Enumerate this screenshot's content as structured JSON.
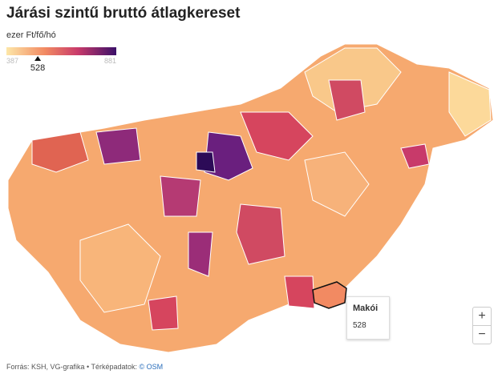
{
  "header": {
    "title": "Járási szintű bruttó átlagkereset"
  },
  "legend": {
    "unit": "ezer Ft/fő/hó",
    "min": 387,
    "max": 881,
    "marker": 528
  },
  "tooltip": {
    "name": "Makói",
    "value": 528
  },
  "footer": {
    "source": "Forrás: KSH, VG-grafika • Térképadatok: ",
    "link": "© OSM"
  },
  "zoom": {
    "in": "+",
    "out": "−"
  }
}
